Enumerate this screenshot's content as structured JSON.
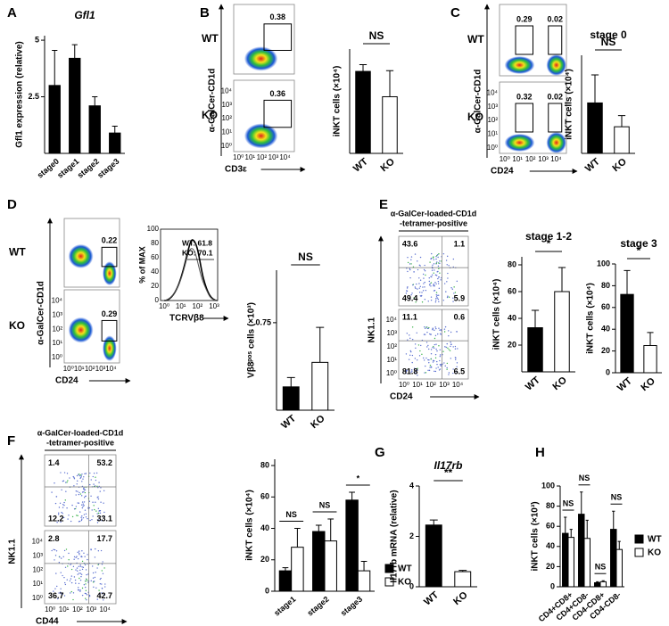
{
  "figure": {
    "panel_labels": [
      "A",
      "B",
      "C",
      "D",
      "E",
      "F",
      "G",
      "H"
    ],
    "flow_ticks": [
      "10⁰",
      "10¹",
      "10²",
      "10³",
      "10⁴"
    ],
    "flow": [
      {
        "rows": [
          "WT",
          "KO"
        ],
        "y_label": "α-GalCer-CD1d",
        "x_label": "CD3ε",
        "gates": [
          [
            "0.38"
          ],
          [
            "0.36"
          ]
        ]
      },
      {
        "rows": [
          "WT",
          "KO"
        ],
        "y_label": "α-GalCer-CD1d",
        "x_label": "CD24",
        "gates": [
          [
            "0.29",
            "0.02"
          ],
          [
            "0.32",
            "0.02"
          ]
        ]
      },
      {
        "rows": [
          "WT",
          "KO"
        ],
        "y_label": "α-GalCer-CD1d",
        "x_label": "CD24",
        "gates": [
          [
            "0.22"
          ],
          [
            "0.29"
          ]
        ]
      },
      {
        "header": [
          "α-GalCer-loaded-CD1d",
          "-tetramer-positive"
        ],
        "y_label": "NK1.1",
        "x_label": "CD24",
        "quadrants": [
          [
            "43.6",
            "1.1",
            "49.4",
            "5.9"
          ],
          [
            "11.1",
            "0.6",
            "81.8",
            "6.5"
          ]
        ]
      },
      {
        "header": [
          "α-GalCer-loaded-CD1d",
          "-tetramer-positive"
        ],
        "y_label": "NK1.1",
        "x_label": "CD44",
        "quadrants": [
          [
            "1.4",
            "53.2",
            "12.2",
            "33.1"
          ],
          [
            "2.8",
            "17.7",
            "36.7",
            "42.7"
          ]
        ]
      }
    ],
    "histogram": {
      "y_label": "% of MAX",
      "x_label": "TCRVβ8",
      "legend": [
        "WT: 61.8",
        "KO: 70.1"
      ],
      "yticks": [
        0,
        20,
        40,
        60,
        80,
        100
      ],
      "xticks": [
        "10⁰",
        "10¹",
        "10²",
        "10³"
      ]
    }
  },
  "chart_data": [
    {
      "type": "bar",
      "title": "Gfl1",
      "y_label": "Gfl1 expression (relative)",
      "categories": [
        "stage0",
        "stage1",
        "stage2",
        "stage3"
      ],
      "values": [
        3.0,
        4.2,
        2.1,
        0.9
      ],
      "errors": [
        1.55,
        0.6,
        0.4,
        0.3
      ],
      "colors": [
        "#000000",
        "#000000",
        "#000000",
        "#000000"
      ],
      "ylim": [
        0,
        5.2
      ],
      "yticks": [
        2.5,
        5
      ]
    },
    {
      "type": "bar",
      "y_label": "iNKT cells (×10⁴)",
      "categories": [
        "WT",
        "KO"
      ],
      "values": [
        11,
        7.6
      ],
      "errors": [
        0.9,
        3.5
      ],
      "colors": [
        "#000000",
        "#ffffff"
      ],
      "ylim": [
        0,
        14
      ],
      "annotation": "NS"
    },
    {
      "type": "bar",
      "title": "stage 0",
      "y_label": "iNKT cells (×10⁴)",
      "categories": [
        "WT",
        "KO"
      ],
      "values": [
        3.6,
        1.9
      ],
      "errors": [
        2.0,
        0.8
      ],
      "colors": [
        "#000000",
        "#ffffff"
      ],
      "ylim": [
        0,
        7
      ],
      "annotation": "NS"
    },
    {
      "type": "bar",
      "y_label": "Vβ8ᵖᵒˢ cells (×10³)",
      "categories": [
        "WT",
        "KO"
      ],
      "values": [
        0.2,
        0.41
      ],
      "errors": [
        0.08,
        0.3
      ],
      "colors": [
        "#000000",
        "#ffffff"
      ],
      "ylim": [
        0,
        1.2
      ],
      "yticks": [
        0.75
      ],
      "annotation": "NS"
    },
    {
      "type": "bar",
      "title": "stage 1-2",
      "y_label": "iNKT cells (×10⁴)",
      "categories": [
        "WT",
        "KO"
      ],
      "values": [
        33,
        60
      ],
      "errors": [
        13,
        18
      ],
      "colors": [
        "#000000",
        "#ffffff"
      ],
      "ylim": [
        0,
        86
      ],
      "yticks": [
        20,
        40,
        60,
        80
      ],
      "annotation": "*"
    },
    {
      "type": "bar",
      "title": "stage 3",
      "y_label": "iNKT cells (×10⁴)",
      "categories": [
        "WT",
        "KO"
      ],
      "values": [
        72,
        25
      ],
      "errors": [
        22,
        12
      ],
      "colors": [
        "#000000",
        "#ffffff"
      ],
      "ylim": [
        0,
        100
      ],
      "yticks": [
        0,
        20,
        40,
        60,
        80,
        100
      ],
      "annotation": "*"
    },
    {
      "type": "grouped_bar",
      "y_label": "iNKT cells (×10⁴)",
      "categories": [
        "stage1",
        "stage2",
        "stage3"
      ],
      "series": [
        {
          "name": "WT",
          "color": "#000000",
          "values": [
            13,
            38,
            58
          ],
          "errors": [
            2,
            4,
            5
          ]
        },
        {
          "name": "KO",
          "color": "#ffffff",
          "values": [
            28,
            32,
            13
          ],
          "errors": [
            12,
            14,
            6
          ]
        }
      ],
      "ylim": [
        0,
        84
      ],
      "yticks": [
        0,
        20,
        40,
        60,
        80
      ],
      "annotations": [
        "NS",
        "NS",
        "*"
      ]
    },
    {
      "type": "bar",
      "title": "Il17rb",
      "y_label": "Il17rb mRNA (relative)",
      "categories": [
        "WT",
        "KO"
      ],
      "values": [
        2.45,
        0.6
      ],
      "errors": [
        0.2,
        0.05
      ],
      "colors": [
        "#000000",
        "#ffffff"
      ],
      "ylim": [
        0,
        4
      ],
      "yticks": [
        0,
        2,
        4
      ],
      "annotation": "**"
    },
    {
      "type": "grouped_bar",
      "y_label": "iNKT cells (×10³)",
      "categories": [
        "CD4+CD8+",
        "CD4+CD8-",
        "CD4-CD8+",
        "CD4-CD8-"
      ],
      "series": [
        {
          "name": "WT",
          "color": "#000000",
          "values": [
            53,
            72,
            4,
            57
          ],
          "errors": [
            16,
            22,
            1,
            18
          ]
        },
        {
          "name": "KO",
          "color": "#ffffff",
          "values": [
            49,
            48,
            5,
            37
          ],
          "errors": [
            8,
            18,
            1,
            8
          ]
        }
      ],
      "ylim": [
        0,
        100
      ],
      "yticks": [
        0,
        20,
        40,
        60,
        80,
        100
      ],
      "annotations": [
        "NS",
        "NS",
        "NS",
        "NS"
      ]
    }
  ]
}
